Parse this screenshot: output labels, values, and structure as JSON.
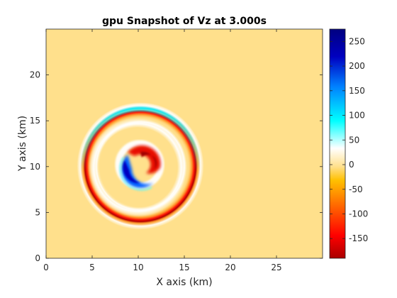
{
  "chart_data": {
    "type": "heatmap",
    "title": "gpu Snapshot of Vz at  3.000s",
    "xlabel": "X axis (km)",
    "ylabel": "Y axis (km)",
    "xlim": [
      0,
      30
    ],
    "ylim": [
      0,
      25
    ],
    "xticks": [
      "0",
      "5",
      "10",
      "15",
      "20",
      "25"
    ],
    "yticks": [
      "0",
      "5",
      "10",
      "15",
      "20"
    ],
    "colorbar": {
      "range": [
        -190,
        275
      ],
      "ticks": [
        "250",
        "200",
        "150",
        "100",
        "50",
        "0",
        "-50",
        "-100",
        "-150"
      ],
      "colormap": [
        "#aa0000",
        "#ff0000",
        "#ff8000",
        "#ffc000",
        "#ffe08c",
        "#ffffff",
        "#00ffff",
        "#0080ff",
        "#0000c0",
        "#000080"
      ]
    },
    "background_value": 0,
    "background_color": "#ffe08c",
    "features": {
      "source_center_km": [
        10.2,
        10.2
      ],
      "outer_wavefront": {
        "radius_km": 5.3,
        "top_color": "cyan",
        "right_color": "red/dark red"
      },
      "inner_wavefront": {
        "radius_km": 4.0,
        "color": "white"
      },
      "core": {
        "radius_km": 1.6,
        "top_right_color": "red",
        "bottom_left_color": "blue"
      }
    }
  }
}
